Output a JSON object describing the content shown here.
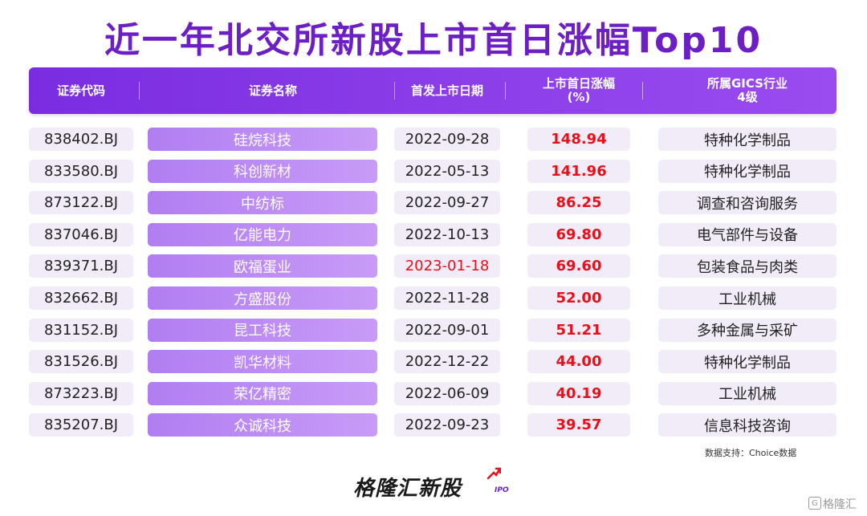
{
  "title": "近一年北交所新股上市首日涨幅Top10",
  "chart_data": {
    "type": "table",
    "columns": [
      "证券代码",
      "证券名称",
      "首发上市日期",
      "上市首日涨幅\n(%)",
      "所属GICS行业\n4级"
    ],
    "rows": [
      {
        "code": "838402.BJ",
        "name": "硅烷科技",
        "date": "2022-09-28",
        "gain": "148.94",
        "industry": "特种化学制品"
      },
      {
        "code": "833580.BJ",
        "name": "科创新材",
        "date": "2022-05-13",
        "gain": "141.96",
        "industry": "特种化学制品"
      },
      {
        "code": "873122.BJ",
        "name": "中纺标",
        "date": "2022-09-27",
        "gain": "86.25",
        "industry": "调查和咨询服务"
      },
      {
        "code": "837046.BJ",
        "name": "亿能电力",
        "date": "2022-10-13",
        "gain": "69.80",
        "industry": "电气部件与设备"
      },
      {
        "code": "839371.BJ",
        "name": "欧福蛋业",
        "date": "2023-01-18",
        "gain": "69.60",
        "industry": "包装食品与肉类"
      },
      {
        "code": "832662.BJ",
        "name": "方盛股份",
        "date": "2022-11-28",
        "gain": "52.00",
        "industry": "工业机械"
      },
      {
        "code": "831152.BJ",
        "name": "昆工科技",
        "date": "2022-09-01",
        "gain": "51.21",
        "industry": "多种金属与采矿"
      },
      {
        "code": "831526.BJ",
        "name": "凯华材料",
        "date": "2022-12-22",
        "gain": "44.00",
        "industry": "特种化学制品"
      },
      {
        "code": "873223.BJ",
        "name": "荣亿精密",
        "date": "2022-06-09",
        "gain": "40.19",
        "industry": "工业机械"
      },
      {
        "code": "835207.BJ",
        "name": "众诚科技",
        "date": "2022-09-23",
        "gain": "39.57",
        "industry": "信息科技咨询"
      }
    ],
    "highlighted_date_row": 4
  },
  "source": "数据支持：Choice数据",
  "brand": "格隆汇新股",
  "brand_sub": "IPO",
  "watermark": {
    "icon": "G",
    "text": "格隆汇"
  },
  "colors": {
    "title": "#6b1fc4",
    "header": "#8a3ce8",
    "name_pill": "#b98af5",
    "pill": "#f1ecf8",
    "positive": "#e8111b"
  }
}
